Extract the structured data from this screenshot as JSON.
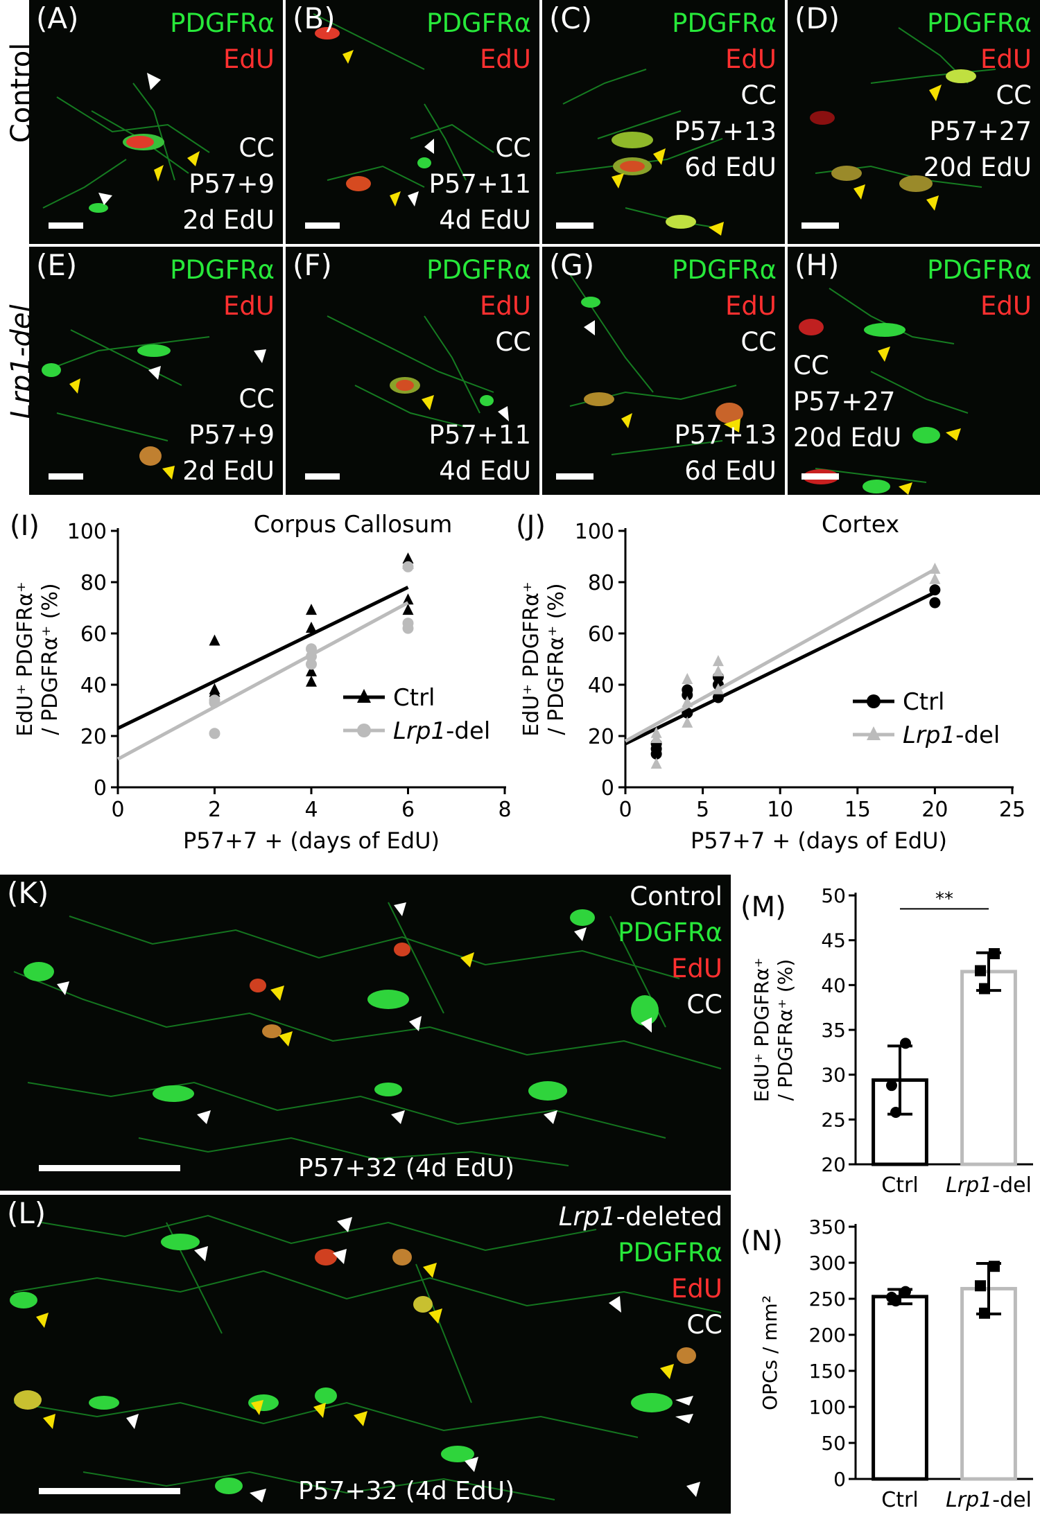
{
  "row_labels": {
    "control": "Control",
    "lrp1_del": "Lrp1-del"
  },
  "panels_top": [
    {
      "id": "A",
      "label": "(A)",
      "green": "PDGFRα",
      "red": "EdU",
      "lines": [
        "CC",
        "P57+9",
        "2d EdU"
      ]
    },
    {
      "id": "B",
      "label": "(B)",
      "green": "PDGFRα",
      "red": "EdU",
      "lines": [
        "CC",
        "P57+11",
        "4d EdU"
      ]
    },
    {
      "id": "C",
      "label": "(C)",
      "green": "PDGFRα",
      "red": "EdU",
      "lines": [
        "CC",
        "P57+13",
        "6d EdU"
      ]
    },
    {
      "id": "D",
      "label": "(D)",
      "green": "PDGFRα",
      "red": "EdU",
      "lines": [
        "CC",
        "P57+27",
        "20d EdU"
      ]
    }
  ],
  "panels_bottom": [
    {
      "id": "E",
      "label": "(E)",
      "green": "PDGFRα",
      "red": "EdU",
      "lines": [
        "CC",
        "P57+9",
        "2d EdU"
      ]
    },
    {
      "id": "F",
      "label": "(F)",
      "green": "PDGFRα",
      "red": "EdU",
      "lines": [
        "CC",
        "P57+11",
        "4d EdU"
      ]
    },
    {
      "id": "G",
      "label": "(G)",
      "green": "PDGFRα",
      "red": "EdU",
      "lines": [
        "CC",
        "P57+13",
        "6d EdU"
      ]
    },
    {
      "id": "H",
      "label": "(H)",
      "green": "PDGFRα",
      "red": "EdU",
      "lines": [
        "CC",
        "P57+27",
        "20d EdU"
      ]
    }
  ],
  "panel_K": {
    "label": "(K)",
    "lines": [
      "Control",
      "PDGFRα",
      "EdU",
      "CC"
    ],
    "caption": "P57+32 (4d EdU)"
  },
  "panel_L": {
    "label": "(L)",
    "lines": [
      "Lrp1-deleted",
      "PDGFRα",
      "EdU",
      "CC"
    ],
    "caption": "P57+32 (4d EdU)"
  },
  "colors": {
    "green": "#27e83a",
    "red": "#ff3030",
    "ctrl": "#000000",
    "lrp1": "#bbbbbb",
    "yellow_arrow": "#f5e000",
    "white_arrow": "#ffffff"
  },
  "chart_data": [
    {
      "id": "I",
      "panel_label": "(I)",
      "type": "scatter",
      "title": "Corpus Callosum",
      "xlabel": "P57+7 + (days of EdU)",
      "ylabel_line1": "EdU⁺ PDGFRα⁺",
      "ylabel_line2": "/ PDGFRα⁺ (%)",
      "xlim": [
        0,
        8
      ],
      "ylim": [
        0,
        100
      ],
      "xticks": [
        0,
        2,
        4,
        6,
        8
      ],
      "yticks": [
        0,
        20,
        40,
        60,
        80,
        100
      ],
      "legend_position": "middle-right",
      "series": [
        {
          "name": "Ctrl",
          "marker": "triangle",
          "color": "#000000",
          "points": [
            [
              2,
              57
            ],
            [
              2,
              38
            ],
            [
              2,
              37
            ],
            [
              4,
              69
            ],
            [
              4,
              62
            ],
            [
              4,
              45
            ],
            [
              4,
              41
            ],
            [
              6,
              89
            ],
            [
              6,
              87
            ],
            [
              6,
              73
            ],
            [
              6,
              69
            ]
          ],
          "fit": [
            [
              0,
              23
            ],
            [
              6,
              78
            ]
          ]
        },
        {
          "name": "Lrp1-del",
          "marker": "circle",
          "color": "#bbbbbb",
          "points": [
            [
              2,
              34
            ],
            [
              2,
              33
            ],
            [
              2,
              21
            ],
            [
              4,
              54
            ],
            [
              4,
              51
            ],
            [
              4,
              48
            ],
            [
              6,
              86
            ],
            [
              6,
              64
            ],
            [
              6,
              62
            ]
          ],
          "fit": [
            [
              0,
              11
            ],
            [
              6,
              72
            ]
          ]
        }
      ]
    },
    {
      "id": "J",
      "panel_label": "(J)",
      "type": "scatter",
      "title": "Cortex",
      "xlabel": "P57+7 + (days of EdU)",
      "ylabel_line1": "EdU⁺ PDGFRα⁺",
      "ylabel_line2": "/ PDGFRα⁺ (%)",
      "xlim": [
        0,
        25
      ],
      "ylim": [
        0,
        100
      ],
      "xticks": [
        0,
        5,
        10,
        15,
        20,
        25
      ],
      "yticks": [
        0,
        20,
        40,
        60,
        80,
        100
      ],
      "legend_position": "lower-right",
      "series": [
        {
          "name": "Ctrl",
          "marker": "circle",
          "color": "#000000",
          "points": [
            [
              2,
              17
            ],
            [
              2,
              15
            ],
            [
              2,
              13
            ],
            [
              4,
              38
            ],
            [
              4,
              36
            ],
            [
              4,
              29
            ],
            [
              6,
              43
            ],
            [
              6,
              40
            ],
            [
              6,
              35
            ],
            [
              20,
              77
            ],
            [
              20,
              72
            ]
          ],
          "fit": [
            [
              0,
              17
            ],
            [
              20,
              76
            ]
          ]
        },
        {
          "name": "Lrp1-del",
          "marker": "triangle",
          "color": "#bbbbbb",
          "points": [
            [
              2,
              21
            ],
            [
              2,
              19
            ],
            [
              2,
              9
            ],
            [
              4,
              42
            ],
            [
              4,
              33
            ],
            [
              4,
              25
            ],
            [
              6,
              49
            ],
            [
              6,
              45
            ],
            [
              6,
              38
            ],
            [
              20,
              85
            ],
            [
              20,
              81
            ]
          ],
          "fit": [
            [
              0,
              18
            ],
            [
              20,
              85
            ]
          ]
        }
      ]
    },
    {
      "id": "M",
      "panel_label": "(M)",
      "type": "bar",
      "ylabel_line1": "EdU⁺ PDGFRα⁺",
      "ylabel_line2": "/ PDGFRα⁺ (%)",
      "categories": [
        "Ctrl",
        "Lrp1-del"
      ],
      "values": [
        29.4,
        41.5
      ],
      "errors": [
        3.8,
        2.1
      ],
      "bar_colors": [
        "#000000",
        "#bbbbbb"
      ],
      "markers": [
        "circle",
        "square"
      ],
      "points": [
        [
          33.5,
          28.8,
          25.8
        ],
        [
          43.5,
          41.6,
          39.6
        ]
      ],
      "ylim": [
        20,
        50
      ],
      "yticks": [
        20,
        25,
        30,
        35,
        40,
        45,
        50
      ],
      "significance": "**"
    },
    {
      "id": "N",
      "panel_label": "(N)",
      "type": "bar",
      "ylabel": "OPCs / mm²",
      "categories": [
        "Ctrl",
        "Lrp1-del"
      ],
      "values": [
        253,
        264
      ],
      "errors": [
        10,
        35
      ],
      "bar_colors": [
        "#000000",
        "#bbbbbb"
      ],
      "markers": [
        "circle",
        "square"
      ],
      "points": [
        [
          260,
          252,
          247
        ],
        [
          295,
          268,
          230
        ]
      ],
      "ylim": [
        0,
        350
      ],
      "yticks": [
        0,
        50,
        100,
        150,
        200,
        250,
        300,
        350
      ]
    }
  ]
}
